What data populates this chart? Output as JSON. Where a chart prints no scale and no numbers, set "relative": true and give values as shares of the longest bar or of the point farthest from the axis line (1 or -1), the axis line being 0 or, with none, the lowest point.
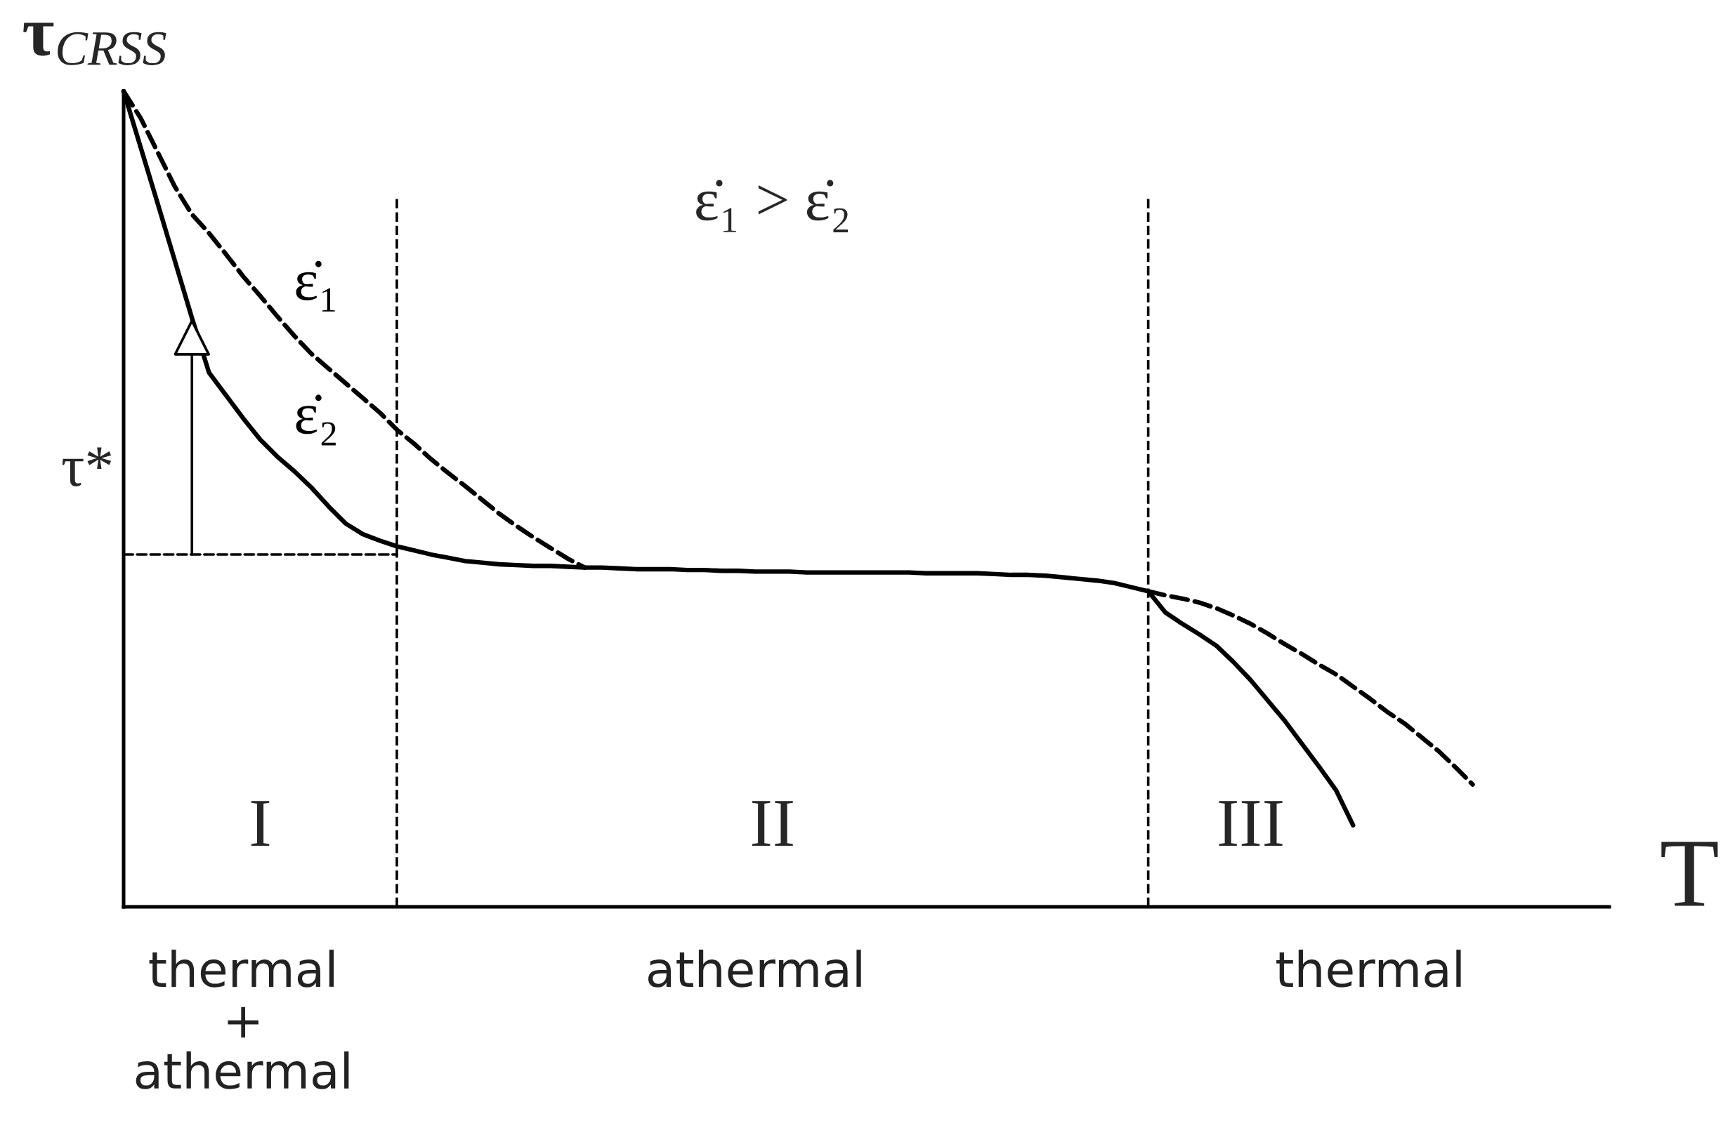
{
  "chart_data": {
    "type": "line",
    "relative": true,
    "tick_labels": "x",
    "xlabel": "T",
    "ylabel": "τ$_{CRSS}$",
    "categories": [
      null,
      null,
      null,
      null,
      null,
      null,
      null,
      "thermal\n+\nathermal",
      null,
      null,
      null,
      null,
      null,
      null,
      null,
      null,
      null,
      null,
      null,
      null,
      null,
      null,
      null,
      null,
      null,
      null,
      null,
      null,
      null,
      null,
      null,
      null,
      null,
      null,
      null,
      null,
      null,
      "athermal",
      null,
      null,
      null,
      null,
      null,
      null,
      null,
      null,
      null,
      null,
      null,
      null,
      null,
      null,
      null,
      null,
      null,
      null,
      null,
      null,
      null,
      null,
      null,
      null,
      null,
      null,
      null,
      null,
      null,
      null,
      null,
      null,
      null,
      null,
      null,
      "thermal",
      null,
      null,
      null,
      null,
      null,
      null,
      null,
      null,
      null,
      null,
      null,
      null,
      null,
      null
    ],
    "series": [
      {
        "name": "ε̇₁",
        "color": "#000000",
        "line_style": "dashed",
        "values": [
          1.0,
          0.967,
          0.925,
          0.883,
          0.849,
          0.826,
          0.8,
          0.773,
          0.749,
          0.724,
          0.7,
          0.678,
          0.66,
          0.642,
          0.624,
          0.606,
          0.585,
          0.568,
          0.549,
          0.532,
          0.516,
          0.499,
          0.482,
          0.467,
          0.453,
          0.44,
          0.427,
          0.416,
          null,
          null,
          null,
          null,
          null,
          null,
          null,
          null,
          null,
          null,
          null,
          null,
          null,
          null,
          null,
          null,
          null,
          null,
          null,
          null,
          null,
          null,
          null,
          null,
          null,
          null,
          null,
          null,
          null,
          null,
          null,
          null,
          0.387,
          0.382,
          0.378,
          0.373,
          0.366,
          0.357,
          0.347,
          0.335,
          0.322,
          0.31,
          0.297,
          0.285,
          0.27,
          0.255,
          0.239,
          0.225,
          0.208,
          0.191,
          0.171,
          0.15,
          null,
          null,
          null,
          null,
          null,
          null,
          null,
          null
        ]
      },
      {
        "name": "ε̇₂",
        "color": "#000000",
        "line_style": "solid",
        "values": [
          1.0,
          0.931,
          0.862,
          0.792,
          0.722,
          0.655,
          0.627,
          0.599,
          0.573,
          0.552,
          0.534,
          0.514,
          0.491,
          0.47,
          0.457,
          0.449,
          0.442,
          0.437,
          0.432,
          0.428,
          0.424,
          0.422,
          0.42,
          0.419,
          0.418,
          0.418,
          0.417,
          0.416,
          0.416,
          0.415,
          0.414,
          0.414,
          0.414,
          0.413,
          0.413,
          0.412,
          0.412,
          0.411,
          0.411,
          0.411,
          0.41,
          0.41,
          0.41,
          0.41,
          0.41,
          0.41,
          0.41,
          0.409,
          0.409,
          0.409,
          0.409,
          0.408,
          0.407,
          0.407,
          0.406,
          0.404,
          0.402,
          0.4,
          0.397,
          0.392,
          0.387,
          0.361,
          0.347,
          0.334,
          0.32,
          0.3,
          0.278,
          0.253,
          0.228,
          0.2,
          0.172,
          0.143,
          0.1,
          null,
          null,
          null,
          null,
          null,
          null,
          null,
          null,
          null,
          null,
          null,
          null,
          null,
          null,
          null
        ]
      },
      {
        "color": "#000000",
        "line_style": "dashed",
        "values": [
          0.432,
          0.432,
          0.432,
          0.432,
          0.432,
          0.432,
          0.432,
          0.432,
          0.432,
          0.432,
          0.432,
          0.432,
          0.432,
          0.432,
          0.432,
          0.432,
          0.432,
          null,
          null,
          null,
          null,
          null,
          null,
          null,
          null,
          null,
          null,
          null,
          null,
          null,
          null,
          null,
          null,
          null,
          null,
          null,
          null,
          null,
          null,
          null,
          null,
          null,
          null,
          null,
          null,
          null,
          null,
          null,
          null,
          null,
          null,
          null,
          null,
          null,
          null,
          null,
          null,
          null,
          null,
          null,
          null,
          null,
          null,
          null,
          null,
          null,
          null,
          null,
          null,
          null,
          null,
          null,
          null,
          null,
          null,
          null,
          null,
          null,
          null,
          null,
          null,
          null,
          null,
          null,
          null,
          null,
          null,
          null
        ]
      }
    ],
    "annotations": [
      "ε̇₁ > ε̇₂",
      "τ*",
      "I",
      "II",
      "III"
    ]
  }
}
